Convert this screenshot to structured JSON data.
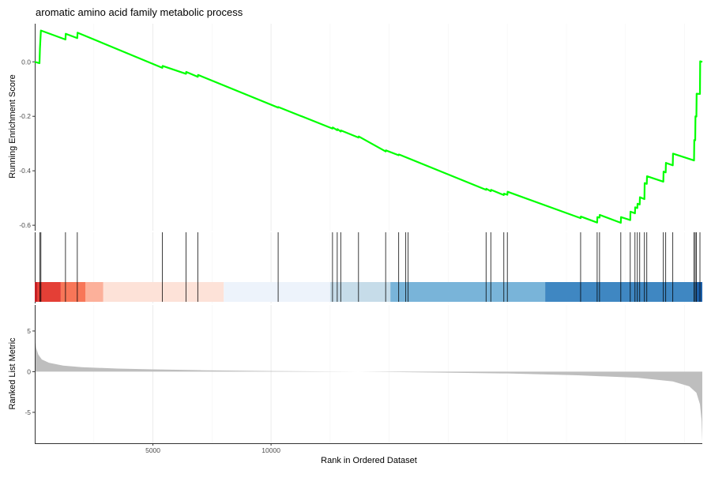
{
  "chart_data": {
    "title": "aromatic amino acid family metabolic process",
    "type": "line",
    "panels": {
      "enrichment": {
        "ylabel": "Running Enrichment Score",
        "ylim": [
          -0.62,
          0.14
        ],
        "yticks": [
          0.0,
          -0.2,
          -0.4,
          -0.6
        ],
        "ytick_labels": [
          "0.0",
          "-0.2",
          "-0.4",
          "-0.6"
        ],
        "line_color": "#00ff00",
        "series": [
          {
            "x": 0,
            "y": 0.0
          },
          {
            "x": 200,
            "y": -0.005
          },
          {
            "x": 220,
            "y": 0.05
          },
          {
            "x": 260,
            "y": 0.115
          },
          {
            "x": 1300,
            "y": 0.082
          },
          {
            "x": 1310,
            "y": 0.103
          },
          {
            "x": 1800,
            "y": 0.087
          },
          {
            "x": 1810,
            "y": 0.107
          },
          {
            "x": 5400,
            "y": -0.022
          },
          {
            "x": 5410,
            "y": -0.015
          },
          {
            "x": 6400,
            "y": -0.044
          },
          {
            "x": 6410,
            "y": -0.037
          },
          {
            "x": 6900,
            "y": -0.055
          },
          {
            "x": 6910,
            "y": -0.048
          },
          {
            "x": 10300,
            "y": -0.168
          },
          {
            "x": 10310,
            "y": -0.166
          },
          {
            "x": 12600,
            "y": -0.245
          },
          {
            "x": 12610,
            "y": -0.241
          },
          {
            "x": 12800,
            "y": -0.251
          },
          {
            "x": 12810,
            "y": -0.247
          },
          {
            "x": 12950,
            "y": -0.256
          },
          {
            "x": 12960,
            "y": -0.252
          },
          {
            "x": 13700,
            "y": -0.278
          },
          {
            "x": 13710,
            "y": -0.274
          },
          {
            "x": 14850,
            "y": -0.329
          },
          {
            "x": 14860,
            "y": -0.325
          },
          {
            "x": 15400,
            "y": -0.343
          },
          {
            "x": 15410,
            "y": -0.34
          },
          {
            "x": 19100,
            "y": -0.47
          },
          {
            "x": 19110,
            "y": -0.466
          },
          {
            "x": 19300,
            "y": -0.475
          },
          {
            "x": 19310,
            "y": -0.47
          },
          {
            "x": 19850,
            "y": -0.489
          },
          {
            "x": 19860,
            "y": -0.484
          },
          {
            "x": 20000,
            "y": -0.488
          },
          {
            "x": 20010,
            "y": -0.477
          },
          {
            "x": 23100,
            "y": -0.574
          },
          {
            "x": 23110,
            "y": -0.568
          },
          {
            "x": 23800,
            "y": -0.59
          },
          {
            "x": 23810,
            "y": -0.57
          },
          {
            "x": 23900,
            "y": -0.572
          },
          {
            "x": 23910,
            "y": -0.562
          },
          {
            "x": 24800,
            "y": -0.591
          },
          {
            "x": 24810,
            "y": -0.57
          },
          {
            "x": 25200,
            "y": -0.581
          },
          {
            "x": 25210,
            "y": -0.55
          },
          {
            "x": 25400,
            "y": -0.556
          },
          {
            "x": 25410,
            "y": -0.534
          },
          {
            "x": 25500,
            "y": -0.537
          },
          {
            "x": 25510,
            "y": -0.521
          },
          {
            "x": 25600,
            "y": -0.524
          },
          {
            "x": 25610,
            "y": -0.497
          },
          {
            "x": 25800,
            "y": -0.504
          },
          {
            "x": 25810,
            "y": -0.445
          },
          {
            "x": 25900,
            "y": -0.448
          },
          {
            "x": 25910,
            "y": -0.42
          },
          {
            "x": 26600,
            "y": -0.44
          },
          {
            "x": 26610,
            "y": -0.403
          },
          {
            "x": 26700,
            "y": -0.406
          },
          {
            "x": 26710,
            "y": -0.371
          },
          {
            "x": 27000,
            "y": -0.38
          },
          {
            "x": 27010,
            "y": -0.337
          },
          {
            "x": 27900,
            "y": -0.362
          },
          {
            "x": 27910,
            "y": -0.287
          },
          {
            "x": 27950,
            "y": -0.288
          },
          {
            "x": 27960,
            "y": -0.2
          },
          {
            "x": 28000,
            "y": -0.201
          },
          {
            "x": 28010,
            "y": -0.117
          },
          {
            "x": 28150,
            "y": -0.118
          },
          {
            "x": 28160,
            "y": 0.002
          },
          {
            "x": 28250,
            "y": 0.0
          }
        ]
      },
      "hits": {
        "positions": [
          220,
          260,
          1300,
          1800,
          5400,
          6400,
          6900,
          10300,
          12600,
          12800,
          12950,
          13700,
          14850,
          15400,
          15700,
          15800,
          19100,
          19300,
          19850,
          20000,
          23100,
          23800,
          23900,
          24800,
          25200,
          25400,
          25500,
          25600,
          25800,
          25900,
          26600,
          26700,
          27000,
          27900,
          27950,
          28000,
          28150
        ]
      },
      "color_bar": {
        "segments": [
          {
            "from": 0,
            "to": 100,
            "color": "#c41f24"
          },
          {
            "from": 100,
            "to": 1100,
            "color": "#e43f36"
          },
          {
            "from": 1100,
            "to": 2150,
            "color": "#f87658"
          },
          {
            "from": 2150,
            "to": 2900,
            "color": "#fcb09a"
          },
          {
            "from": 2900,
            "to": 8000,
            "color": "#fde2d8"
          },
          {
            "from": 8000,
            "to": 12500,
            "color": "#edf3fb"
          },
          {
            "from": 12500,
            "to": 15050,
            "color": "#c6dce9"
          },
          {
            "from": 15050,
            "to": 21600,
            "color": "#79b4d9"
          },
          {
            "from": 21600,
            "to": 28000,
            "color": "#3f87c2"
          },
          {
            "from": 28000,
            "to": 28250,
            "color": "#1c5fa8"
          }
        ]
      },
      "ranked": {
        "ylabel": "Ranked List Metric",
        "ylim": [
          -8.8,
          8.2
        ],
        "yticks": [
          5,
          0,
          -5
        ],
        "ytick_labels": [
          "5",
          "0",
          "-5"
        ],
        "fill_color": "#bebebe",
        "series": [
          {
            "x": 0,
            "y": 4.5
          },
          {
            "x": 60,
            "y": 2.9
          },
          {
            "x": 150,
            "y": 2.1
          },
          {
            "x": 300,
            "y": 1.5
          },
          {
            "x": 600,
            "y": 1.1
          },
          {
            "x": 1200,
            "y": 0.75
          },
          {
            "x": 2000,
            "y": 0.55
          },
          {
            "x": 3500,
            "y": 0.38
          },
          {
            "x": 5000,
            "y": 0.28
          },
          {
            "x": 7000,
            "y": 0.18
          },
          {
            "x": 10000,
            "y": 0.08
          },
          {
            "x": 13700,
            "y": 0.0
          },
          {
            "x": 17000,
            "y": -0.1
          },
          {
            "x": 20000,
            "y": -0.22
          },
          {
            "x": 23000,
            "y": -0.45
          },
          {
            "x": 25500,
            "y": -0.75
          },
          {
            "x": 27000,
            "y": -1.2
          },
          {
            "x": 27700,
            "y": -1.8
          },
          {
            "x": 28000,
            "y": -2.6
          },
          {
            "x": 28150,
            "y": -4.0
          },
          {
            "x": 28220,
            "y": -6.0
          },
          {
            "x": 28250,
            "y": -8.6
          }
        ]
      }
    },
    "xlabel": "Rank in Ordered Dataset",
    "xlim": [
      0,
      28250
    ],
    "xticks": [
      5000,
      10000
    ],
    "xtick_labels": [
      "5000",
      "10000"
    ],
    "grid": true,
    "gridline_x": [
      2500,
      5000,
      7500,
      10000,
      12500,
      15000,
      17500,
      20000,
      22500,
      25000,
      27500
    ]
  }
}
